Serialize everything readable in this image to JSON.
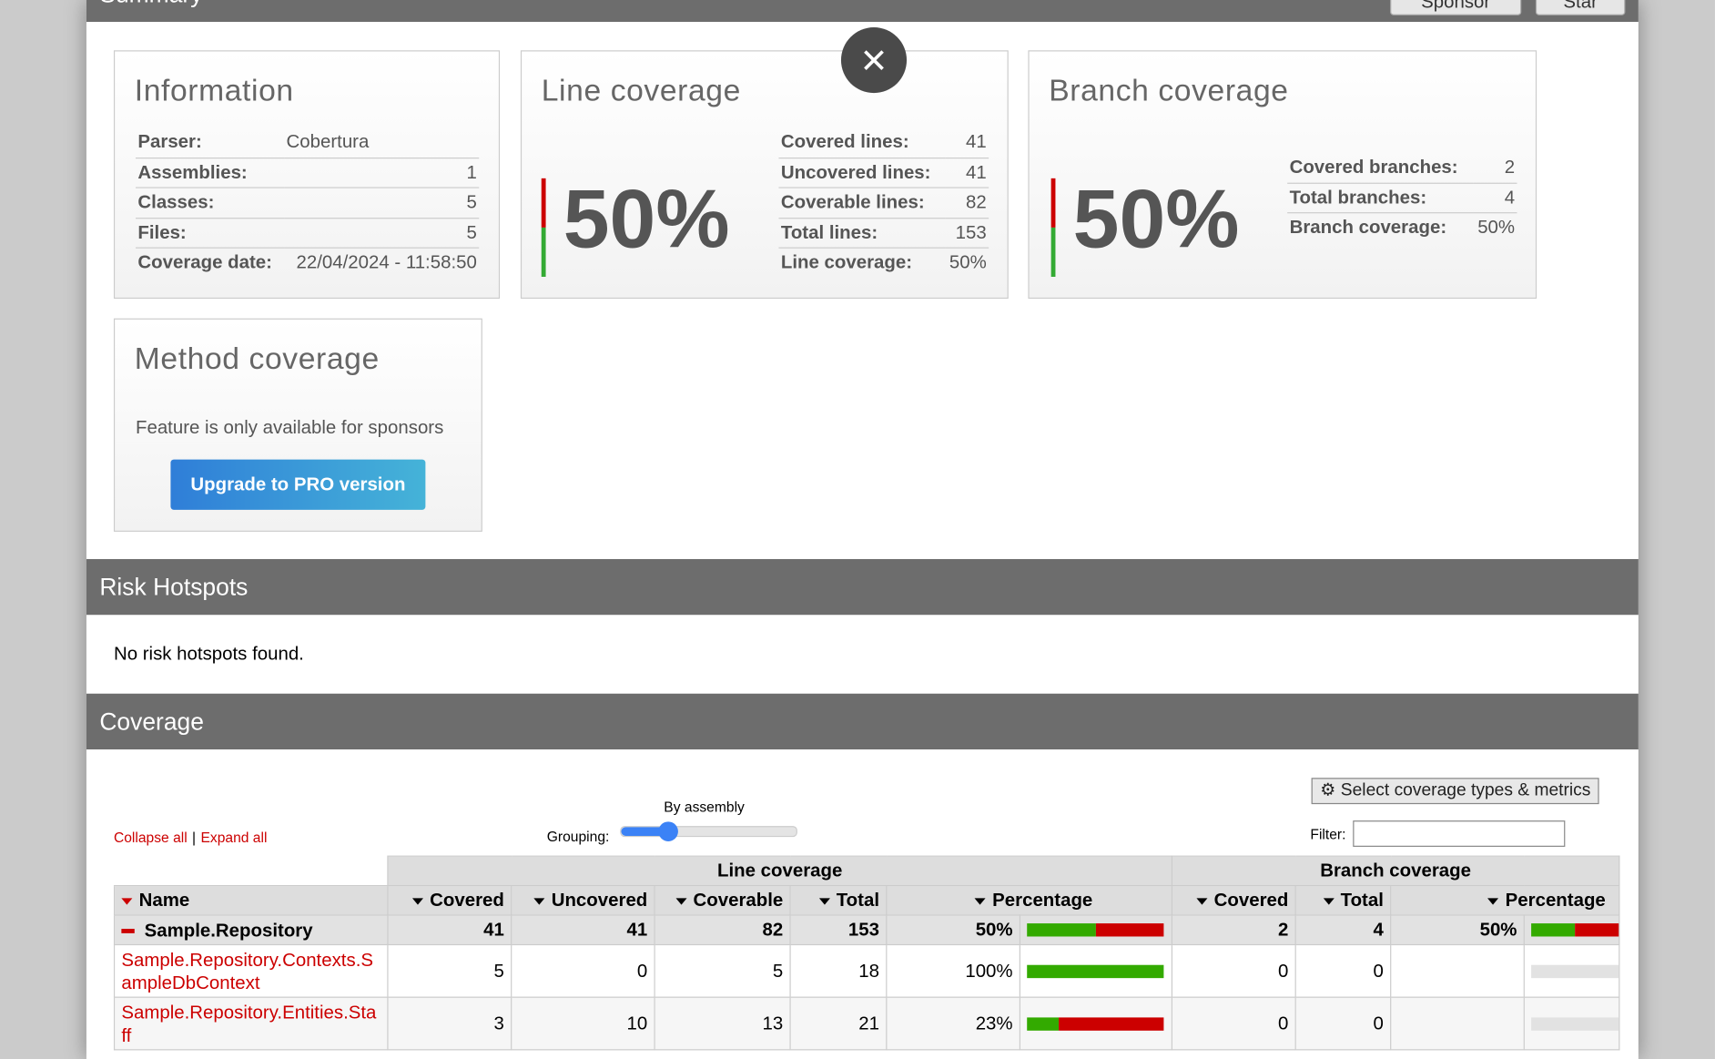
{
  "header": {
    "title": "Summary",
    "buttons": [
      "Sponsor",
      "Star"
    ]
  },
  "information": {
    "title": "Information",
    "rows": [
      [
        "Parser:",
        "Cobertura"
      ],
      [
        "Assemblies:",
        "1"
      ],
      [
        "Classes:",
        "5"
      ],
      [
        "Files:",
        "5"
      ],
      [
        "Coverage date:",
        "22/04/2024 - 11:58:50"
      ]
    ]
  },
  "line_coverage": {
    "title": "Line coverage",
    "percent": "50%",
    "rows": [
      [
        "Covered lines:",
        "41"
      ],
      [
        "Uncovered lines:",
        "41"
      ],
      [
        "Coverable lines:",
        "82"
      ],
      [
        "Total lines:",
        "153"
      ],
      [
        "Line coverage:",
        "50%"
      ]
    ]
  },
  "branch_coverage": {
    "title": "Branch coverage",
    "percent": "50%",
    "rows": [
      [
        "Covered branches:",
        "2"
      ],
      [
        "Total branches:",
        "4"
      ],
      [
        "Branch coverage:",
        "50%"
      ]
    ]
  },
  "method_coverage": {
    "title": "Method coverage",
    "text": "Feature is only available for sponsors",
    "button": "Upgrade to PRO version"
  },
  "risk_hotspots": {
    "title": "Risk Hotspots",
    "text": "No risk hotspots found."
  },
  "coverage": {
    "title": "Coverage",
    "collapse": "Collapse all",
    "separator": "|",
    "expand": "Expand all",
    "grouping_label": "Grouping:",
    "grouping_value": "By assembly",
    "metrics_button": "Select coverage types & metrics",
    "filter_label": "Filter:",
    "groups": [
      "Line coverage",
      "Branch coverage"
    ],
    "columns": [
      "Name",
      "Covered",
      "Uncovered",
      "Coverable",
      "Total",
      "Percentage",
      "Covered",
      "Total",
      "Percentage"
    ],
    "rows": [
      [
        "Sample.Repository",
        "41",
        "41",
        "82",
        "153",
        "50%",
        "2",
        "4",
        "50%"
      ],
      [
        "Sample.Repository.Contexts.SampleDbContext",
        "5",
        "0",
        "5",
        "18",
        "100%",
        "0",
        "0",
        null
      ],
      [
        "Sample.Repository.Entities.Staff",
        "3",
        "10",
        "13",
        "21",
        "23%",
        "0",
        "0",
        null
      ]
    ]
  }
}
